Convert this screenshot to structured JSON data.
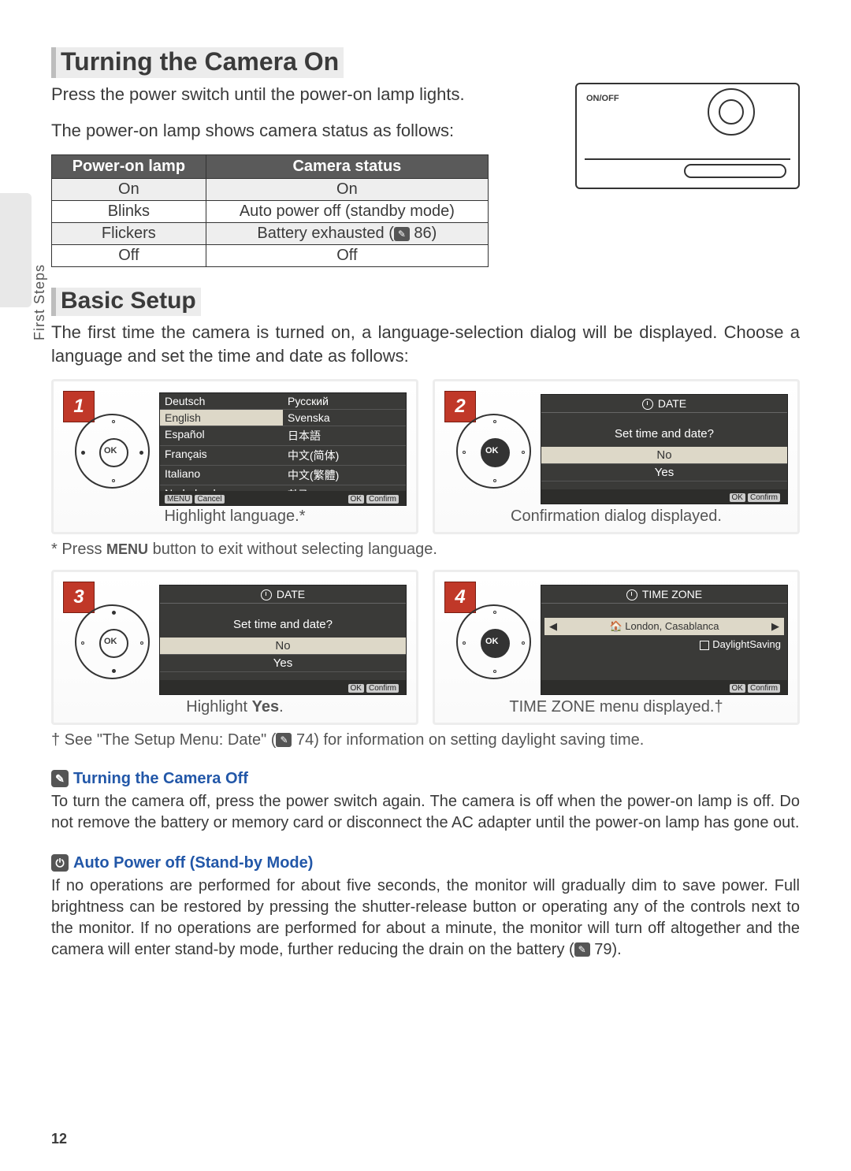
{
  "sideLabel": "First Steps",
  "heading1": "Turning the Camera On",
  "intro1a": "Press the power switch until the power-on lamp lights.",
  "intro1b": "The power-on lamp shows camera status as follows:",
  "table": {
    "headers": [
      "Power-on lamp",
      "Camera status"
    ],
    "rows": [
      [
        "On",
        "On"
      ],
      [
        "Blinks",
        "Auto power off (standby mode)"
      ],
      [
        "Flickers",
        "Battery exhausted ( 86)"
      ],
      [
        "Off",
        "Off"
      ]
    ]
  },
  "cameraLabel": "ON/OFF",
  "heading2": "Basic Setup",
  "setupIntro": "The first time the camera is turned on, a language-selection dialog will be displayed.  Choose a language and set the time and date as follows:",
  "steps": {
    "s1": {
      "num": "1",
      "langs": [
        "Deutsch",
        "Русский",
        "English",
        "Svenska",
        "Español",
        "日本語",
        "Français",
        "中文(简体)",
        "Italiano",
        "中文(繁體)",
        "Nederlands",
        "한글"
      ],
      "footerL": "Cancel",
      "footerR": "Confirm",
      "caption": "Highlight language.*"
    },
    "s2": {
      "num": "2",
      "title": "DATE",
      "q": "Set time and date?",
      "opts": [
        "No",
        "Yes"
      ],
      "footerR": "Confirm",
      "caption": "Confirmation dialog displayed."
    },
    "s3": {
      "num": "3",
      "title": "DATE",
      "q": "Set time and date?",
      "opts": [
        "No",
        "Yes"
      ],
      "footerR": "Confirm",
      "caption": "Highlight Yes."
    },
    "s4": {
      "num": "4",
      "title": "TIME ZONE",
      "tz": "London, Casablanca",
      "dst": "DaylightSaving",
      "footerR": "Confirm",
      "caption": "TIME ZONE menu displayed.†"
    }
  },
  "note1": "* Press MENU button to exit without selecting language.",
  "note2": "† See \"The Setup Menu: Date\" ( 74) for information on setting daylight saving time.",
  "sub1": {
    "head": "Turning the Camera Off",
    "text": "To turn the camera off, press the power switch again.  The camera is off when the power-on lamp is off.  Do not remove the battery or memory card or disconnect the AC adapter until the power-on lamp has gone out."
  },
  "sub2": {
    "head": "Auto Power off (Stand-by Mode)",
    "text": "If no operations are performed for about five seconds, the monitor will gradually dim to save power.  Full brightness can be restored by pressing the shutter-release button or operating any of the controls next to the monitor.  If no operations are performed for about a minute, the monitor will turn off altogether and the camera will enter stand-by mode, further reducing the drain on the battery ( 79)."
  },
  "pageNum": "12"
}
